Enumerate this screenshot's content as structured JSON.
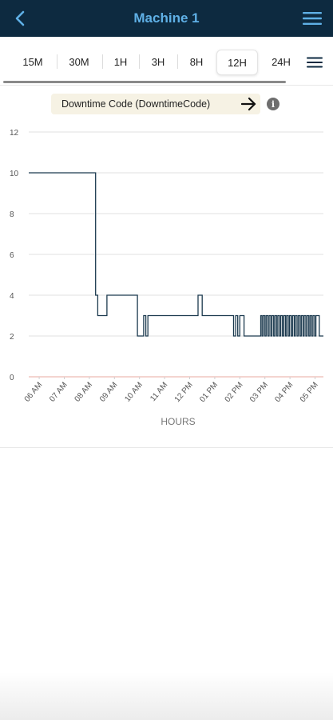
{
  "header": {
    "title": "Machine 1",
    "back_icon": "chevron-left-icon",
    "menu_icon": "hamburger-menu-icon"
  },
  "time_tabs": {
    "items": [
      "15M",
      "30M",
      "1H",
      "3H",
      "8H",
      "12H",
      "24H"
    ],
    "selected": "12H",
    "menu_icon": "hamburger-menu-icon"
  },
  "selector": {
    "label": "Downtime Code (DowntimeCode)",
    "arrow_icon": "arrow-right-icon",
    "info_icon": "info-icon",
    "info_glyph": "i"
  },
  "colors": {
    "header_bg": "#0d2a40",
    "title": "#5fb0e6",
    "series": "#1c3a4f",
    "zero_line": "#e8a9a2",
    "selector_bg": "#f6f2e4"
  },
  "chart_data": {
    "type": "line",
    "step": true,
    "xlabel": "HOURS",
    "ylabel": "",
    "ylim": [
      0,
      12
    ],
    "yticks": [
      0,
      2,
      4,
      6,
      8,
      10,
      12
    ],
    "grid": true,
    "x_range": [
      "05:35",
      "17:20"
    ],
    "xticks": [
      "06 AM",
      "07 AM",
      "08 AM",
      "09 AM",
      "10 AM",
      "11 AM",
      "12 PM",
      "01 PM",
      "02 PM",
      "03 PM",
      "04 PM",
      "05 PM"
    ],
    "series": [
      {
        "name": "",
        "points": [
          [
            "05:35",
            10
          ],
          [
            "08:15",
            10
          ],
          [
            "08:15",
            4
          ],
          [
            "08:20",
            4
          ],
          [
            "08:20",
            3
          ],
          [
            "08:42",
            3
          ],
          [
            "08:42",
            4
          ],
          [
            "09:55",
            4
          ],
          [
            "09:55",
            2
          ],
          [
            "10:10",
            2
          ],
          [
            "10:10",
            3
          ],
          [
            "10:15",
            3
          ],
          [
            "10:15",
            2
          ],
          [
            "10:20",
            2
          ],
          [
            "10:20",
            3
          ],
          [
            "12:20",
            3
          ],
          [
            "12:20",
            4
          ],
          [
            "12:30",
            4
          ],
          [
            "12:30",
            3
          ],
          [
            "13:45",
            3
          ],
          [
            "13:45",
            2
          ],
          [
            "13:50",
            2
          ],
          [
            "13:50",
            3
          ],
          [
            "13:55",
            3
          ],
          [
            "13:55",
            2
          ],
          [
            "14:00",
            2
          ],
          [
            "14:00",
            3
          ],
          [
            "14:10",
            3
          ],
          [
            "14:10",
            2
          ],
          [
            "14:50",
            2
          ],
          [
            "14:50",
            3
          ],
          [
            "14:53",
            3
          ],
          [
            "14:53",
            2
          ],
          [
            "14:56",
            2
          ],
          [
            "14:56",
            3
          ],
          [
            "15:00",
            3
          ],
          [
            "15:00",
            2
          ],
          [
            "15:03",
            2
          ],
          [
            "15:03",
            3
          ],
          [
            "15:07",
            3
          ],
          [
            "15:07",
            2
          ],
          [
            "15:10",
            2
          ],
          [
            "15:10",
            3
          ],
          [
            "15:14",
            3
          ],
          [
            "15:14",
            2
          ],
          [
            "15:17",
            2
          ],
          [
            "15:17",
            3
          ],
          [
            "15:21",
            3
          ],
          [
            "15:21",
            2
          ],
          [
            "15:24",
            2
          ],
          [
            "15:24",
            3
          ],
          [
            "15:28",
            3
          ],
          [
            "15:28",
            2
          ],
          [
            "15:31",
            2
          ],
          [
            "15:31",
            3
          ],
          [
            "15:35",
            3
          ],
          [
            "15:35",
            2
          ],
          [
            "15:38",
            2
          ],
          [
            "15:38",
            3
          ],
          [
            "15:42",
            3
          ],
          [
            "15:42",
            2
          ],
          [
            "15:45",
            2
          ],
          [
            "15:45",
            3
          ],
          [
            "15:49",
            3
          ],
          [
            "15:49",
            2
          ],
          [
            "15:52",
            2
          ],
          [
            "15:52",
            3
          ],
          [
            "15:56",
            3
          ],
          [
            "15:56",
            2
          ],
          [
            "15:59",
            2
          ],
          [
            "15:59",
            3
          ],
          [
            "16:03",
            3
          ],
          [
            "16:03",
            2
          ],
          [
            "16:06",
            2
          ],
          [
            "16:06",
            3
          ],
          [
            "16:10",
            3
          ],
          [
            "16:10",
            2
          ],
          [
            "16:13",
            2
          ],
          [
            "16:13",
            3
          ],
          [
            "16:17",
            3
          ],
          [
            "16:17",
            2
          ],
          [
            "16:20",
            2
          ],
          [
            "16:20",
            3
          ],
          [
            "16:24",
            3
          ],
          [
            "16:24",
            2
          ],
          [
            "16:27",
            2
          ],
          [
            "16:27",
            3
          ],
          [
            "16:31",
            3
          ],
          [
            "16:31",
            2
          ],
          [
            "16:34",
            2
          ],
          [
            "16:34",
            3
          ],
          [
            "16:38",
            3
          ],
          [
            "16:38",
            2
          ],
          [
            "16:41",
            2
          ],
          [
            "16:41",
            3
          ],
          [
            "16:45",
            3
          ],
          [
            "16:45",
            2
          ],
          [
            "16:48",
            2
          ],
          [
            "16:48",
            3
          ],
          [
            "16:52",
            3
          ],
          [
            "16:52",
            2
          ],
          [
            "16:55",
            2
          ],
          [
            "16:55",
            3
          ],
          [
            "16:59",
            3
          ],
          [
            "16:59",
            2
          ],
          [
            "17:02",
            2
          ],
          [
            "17:02",
            3
          ],
          [
            "17:10",
            3
          ],
          [
            "17:10",
            2
          ],
          [
            "17:20",
            2
          ]
        ]
      }
    ]
  }
}
